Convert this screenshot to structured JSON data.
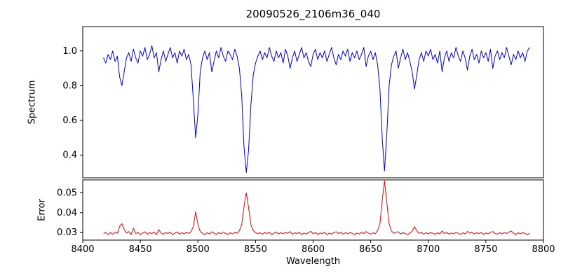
{
  "chart_data": {
    "type": "line",
    "title": "20090526_2106m36_040",
    "xlabel": "Wavelength",
    "xlim": [
      8400,
      8800
    ],
    "xticks": [
      8400,
      8450,
      8500,
      8550,
      8600,
      8650,
      8700,
      8750,
      8800
    ],
    "xtick_labels": [
      "8400",
      "8450",
      "8500",
      "8550",
      "8600",
      "8650",
      "8700",
      "8750",
      "8800"
    ],
    "x_start": 8418,
    "x_step": 2,
    "grid": false,
    "legend": "none",
    "panels": [
      {
        "name": "spectrum",
        "ylabel": "Spectrum",
        "color": "#0000dd",
        "ylim": [
          0.27,
          1.14
        ],
        "yticks": [
          0.4,
          0.6,
          0.8,
          1.0
        ],
        "ytick_labels": [
          "0.4",
          "0.6",
          "0.8",
          "1.0"
        ],
        "values": [
          0.96,
          0.93,
          0.98,
          0.95,
          1.0,
          0.94,
          0.97,
          0.85,
          0.8,
          0.88,
          0.96,
          0.99,
          0.94,
          1.01,
          0.96,
          0.93,
          1.0,
          0.97,
          1.02,
          0.95,
          0.98,
          1.03,
          0.96,
          0.99,
          0.88,
          0.95,
          1.0,
          0.94,
          0.98,
          1.02,
          0.96,
          0.99,
          0.93,
          1.0,
          0.97,
          1.01,
          0.95,
          0.98,
          0.92,
          0.72,
          0.5,
          0.64,
          0.88,
          0.96,
          1.0,
          0.95,
          0.99,
          0.88,
          0.94,
          1.0,
          0.96,
          1.02,
          0.97,
          0.94,
          1.0,
          0.98,
          0.95,
          1.01,
          0.97,
          0.9,
          0.74,
          0.45,
          0.3,
          0.43,
          0.69,
          0.86,
          0.93,
          0.97,
          1.0,
          0.95,
          0.99,
          0.96,
          1.02,
          0.97,
          0.94,
          1.0,
          0.96,
          0.99,
          0.93,
          1.01,
          0.97,
          0.9,
          0.96,
          1.0,
          0.94,
          0.98,
          1.02,
          0.96,
          0.99,
          0.94,
          0.91,
          0.98,
          1.01,
          0.95,
          0.99,
          0.96,
          1.0,
          0.94,
          0.98,
          1.02,
          0.96,
          0.92,
          0.98,
          0.95,
          1.0,
          0.97,
          1.01,
          0.94,
          0.99,
          0.96,
          1.0,
          0.95,
          0.98,
          1.02,
          0.91,
          0.97,
          1.0,
          0.95,
          0.99,
          0.92,
          0.78,
          0.5,
          0.31,
          0.52,
          0.8,
          0.92,
          0.97,
          1.0,
          0.9,
          0.96,
          1.01,
          0.95,
          0.99,
          0.94,
          0.88,
          0.78,
          0.86,
          0.95,
          0.99,
          0.94,
          1.0,
          0.97,
          1.01,
          0.95,
          0.98,
          0.93,
          1.0,
          0.88,
          0.96,
          1.0,
          0.94,
          0.99,
          0.96,
          1.02,
          0.97,
          0.94,
          1.0,
          0.96,
          0.89,
          0.97,
          1.01,
          0.95,
          0.98,
          0.93,
          1.0,
          0.96,
          0.99,
          0.94,
          1.01,
          0.9,
          0.97,
          1.0,
          0.95,
          0.99,
          0.96,
          1.02,
          0.97,
          0.92,
          0.98,
          0.95,
          1.0,
          0.96,
          0.99,
          0.94,
          1.0,
          1.02
        ]
      },
      {
        "name": "error",
        "ylabel": "Error",
        "color": "#ee0000",
        "ylim": [
          0.0262,
          0.0565
        ],
        "yticks": [
          0.03,
          0.04,
          0.05
        ],
        "ytick_labels": [
          "0.03",
          "0.04",
          "0.05"
        ],
        "values": [
          0.0295,
          0.03,
          0.029,
          0.03,
          0.0292,
          0.0302,
          0.0296,
          0.033,
          0.0345,
          0.0315,
          0.0298,
          0.0305,
          0.029,
          0.0322,
          0.0295,
          0.03,
          0.029,
          0.0298,
          0.0304,
          0.0292,
          0.03,
          0.0295,
          0.0302,
          0.029,
          0.0315,
          0.0298,
          0.0292,
          0.03,
          0.0295,
          0.0302,
          0.029,
          0.0297,
          0.0303,
          0.0292,
          0.0299,
          0.0294,
          0.0301,
          0.0296,
          0.0305,
          0.033,
          0.0405,
          0.034,
          0.0305,
          0.0296,
          0.029,
          0.0299,
          0.0293,
          0.0304,
          0.0297,
          0.0291,
          0.03,
          0.0294,
          0.0302,
          0.0296,
          0.029,
          0.0299,
          0.0293,
          0.0301,
          0.0297,
          0.031,
          0.034,
          0.043,
          0.05,
          0.0425,
          0.034,
          0.031,
          0.03,
          0.0294,
          0.0299,
          0.0292,
          0.03,
          0.0295,
          0.0302,
          0.029,
          0.0297,
          0.0303,
          0.0293,
          0.0299,
          0.0294,
          0.0301,
          0.0296,
          0.0305,
          0.0292,
          0.0299,
          0.0295,
          0.0301,
          0.029,
          0.0298,
          0.0293,
          0.03,
          0.0306,
          0.0294,
          0.03,
          0.0291,
          0.0298,
          0.0295,
          0.0302,
          0.029,
          0.0297,
          0.0293,
          0.03,
          0.0304,
          0.0295,
          0.0301,
          0.0292,
          0.0299,
          0.0294,
          0.03,
          0.0296,
          0.029,
          0.0298,
          0.0293,
          0.0301,
          0.0295,
          0.0305,
          0.0297,
          0.0292,
          0.0299,
          0.0294,
          0.031,
          0.0345,
          0.046,
          0.056,
          0.045,
          0.0345,
          0.0308,
          0.0296,
          0.0301,
          0.0304,
          0.0293,
          0.0299,
          0.0295,
          0.029,
          0.0298,
          0.0306,
          0.033,
          0.031,
          0.0296,
          0.0301,
          0.0292,
          0.0299,
          0.0294,
          0.03,
          0.0296,
          0.0291,
          0.0299,
          0.0293,
          0.0308,
          0.0295,
          0.03,
          0.0292,
          0.0298,
          0.0294,
          0.0301,
          0.0296,
          0.029,
          0.0299,
          0.0293,
          0.0306,
          0.0297,
          0.0301,
          0.0293,
          0.0299,
          0.0295,
          0.03,
          0.0291,
          0.0298,
          0.0294,
          0.0301,
          0.0305,
          0.0296,
          0.0292,
          0.0299,
          0.0294,
          0.03,
          0.0295,
          0.0302,
          0.0308,
          0.0296,
          0.0291,
          0.0299,
          0.0294,
          0.03,
          0.0295,
          0.029,
          0.0297
        ]
      }
    ],
    "annotations": {
      "absorption_lines_wavelengths": [
        8498,
        8542,
        8662
      ]
    }
  }
}
